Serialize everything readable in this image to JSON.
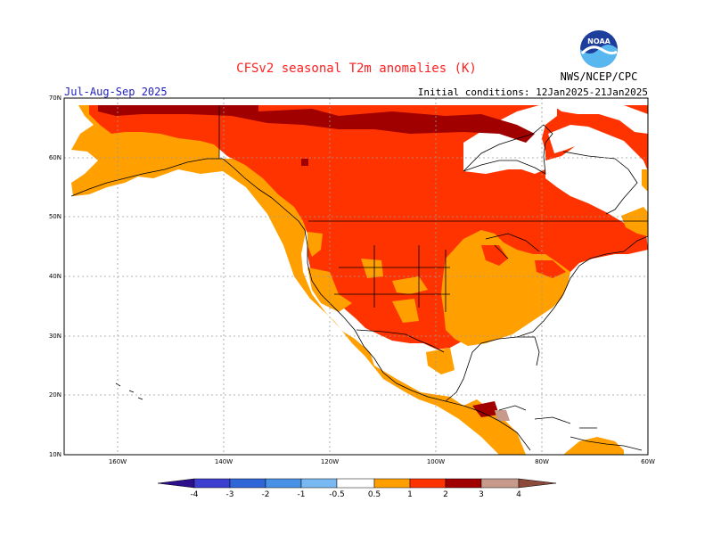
{
  "header": {
    "title": "CFSv2 seasonal T2m anomalies (K)",
    "season": "Jul-Aug-Sep 2025",
    "initial_conditions": "Initial conditions: 12Jan2025-21Jan2025",
    "agency": "NWS/NCEP/CPC",
    "logo_text": "NOAA"
  },
  "map": {
    "region": "North America",
    "lat_labels": [
      "70N",
      "60N",
      "50N",
      "40N",
      "30N",
      "20N",
      "10N"
    ],
    "lon_labels": [
      "160W",
      "140W",
      "120W",
      "100W",
      "80W",
      "60W"
    ]
  },
  "colorbar": {
    "tick_labels": [
      "-4",
      "-3",
      "-2",
      "-1",
      "-0.5",
      "0.5",
      "1",
      "2",
      "3",
      "4"
    ],
    "colors": {
      "below_-4": "#2b0f8c",
      "-4_-3": "#3d3fd0",
      "-3_-2": "#2f66d8",
      "-2_-1": "#4791e6",
      "-1_-0.5": "#79b9f2",
      "-0.5_0.5": "#ffffff",
      "0.5_1": "#ff9f00",
      "1_2": "#ff3300",
      "2_3": "#a00000",
      "3_4": "#c89a8c",
      "above_4": "#8c4a3a"
    }
  },
  "colors": {
    "ocean": "#ffffff",
    "anomaly_0.5_1": "#ff9f00",
    "anomaly_1_2": "#ff3300",
    "anomaly_2_3": "#a00000",
    "title": "#ff2020",
    "season": "#2020c0",
    "grid": "#9a9a9a"
  }
}
